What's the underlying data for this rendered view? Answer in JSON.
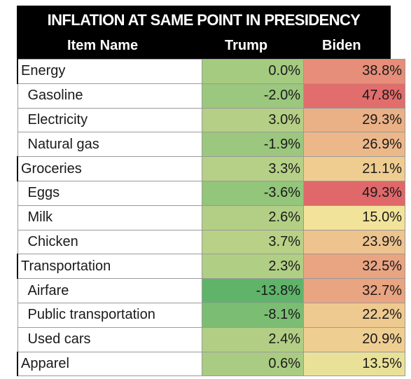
{
  "title": "INFLATION AT SAME POINT IN PRESIDENCY",
  "columns": {
    "item": "Item Name",
    "trump": "Trump",
    "biden": "Biden"
  },
  "chart_data": {
    "type": "table",
    "title": "INFLATION AT SAME POINT IN PRESIDENCY",
    "columns": [
      "Item Name",
      "Trump",
      "Biden"
    ],
    "rows": [
      {
        "name": "Energy",
        "level": 0,
        "trump": "0.0%",
        "biden": "38.8%",
        "trump_value": 0.0,
        "biden_value": 38.8
      },
      {
        "name": "Gasoline",
        "level": 1,
        "trump": "-2.0%",
        "biden": "47.8%",
        "trump_value": -2.0,
        "biden_value": 47.8
      },
      {
        "name": "Electricity",
        "level": 1,
        "trump": "3.0%",
        "biden": "29.3%",
        "trump_value": 3.0,
        "biden_value": 29.3
      },
      {
        "name": "Natural gas",
        "level": 1,
        "trump": "-1.9%",
        "biden": "26.9%",
        "trump_value": -1.9,
        "biden_value": 26.9
      },
      {
        "name": "Groceries",
        "level": 0,
        "trump": "3.3%",
        "biden": "21.1%",
        "trump_value": 3.3,
        "biden_value": 21.1
      },
      {
        "name": "Eggs",
        "level": 1,
        "trump": "-3.6%",
        "biden": "49.3%",
        "trump_value": -3.6,
        "biden_value": 49.3
      },
      {
        "name": "Milk",
        "level": 1,
        "trump": "2.6%",
        "biden": "15.0%",
        "trump_value": 2.6,
        "biden_value": 15.0
      },
      {
        "name": "Chicken",
        "level": 1,
        "trump": "3.7%",
        "biden": "23.9%",
        "trump_value": 3.7,
        "biden_value": 23.9
      },
      {
        "name": "Transportation",
        "level": 0,
        "trump": "2.3%",
        "biden": "32.5%",
        "trump_value": 2.3,
        "biden_value": 32.5
      },
      {
        "name": "Airfare",
        "level": 1,
        "trump": "-13.8%",
        "biden": "32.7%",
        "trump_value": -13.8,
        "biden_value": 32.7
      },
      {
        "name": "Public transportation",
        "level": 1,
        "trump": "-8.1%",
        "biden": "22.2%",
        "trump_value": -8.1,
        "biden_value": 22.2
      },
      {
        "name": "Used cars",
        "level": 1,
        "trump": "2.4%",
        "biden": "20.9%",
        "trump_value": 2.4,
        "biden_value": 20.9
      },
      {
        "name": "Apparel",
        "level": 0,
        "trump": "0.6%",
        "biden": "13.5%",
        "trump_value": 0.6,
        "biden_value": 13.5
      }
    ],
    "color_scale": {
      "low": "#5fb46a",
      "mid": "#f2e39a",
      "high": "#e0686a"
    }
  }
}
